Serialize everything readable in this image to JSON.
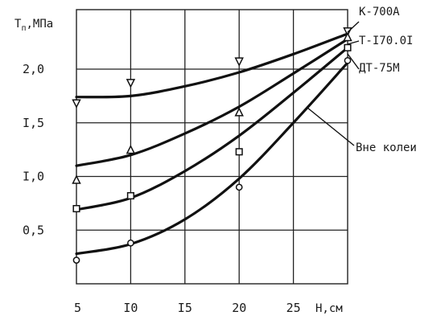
{
  "chart_data": {
    "type": "line",
    "xlabel": "H,см",
    "ylabel": "T_п,МПа",
    "ylabel_main": "T",
    "ylabel_sub": "п",
    "ylabel_unit": ",МПа",
    "xlim": [
      5,
      30
    ],
    "ylim": [
      0,
      2.5
    ],
    "x_ticks": [
      {
        "value": 5,
        "label": "5"
      },
      {
        "value": 10,
        "label": "I0"
      },
      {
        "value": 15,
        "label": "I5"
      },
      {
        "value": 20,
        "label": "20"
      },
      {
        "value": 25,
        "label": "25"
      }
    ],
    "y_ticks": [
      {
        "value": 0.5,
        "label": "0,5"
      },
      {
        "value": 1.0,
        "label": "I,0"
      },
      {
        "value": 1.5,
        "label": "I,5"
      },
      {
        "value": 2.0,
        "label": "2,0"
      }
    ],
    "grid": true,
    "series": [
      {
        "name": "К-700А",
        "marker": "triangle-down",
        "points": [
          [
            5,
            1.68
          ],
          [
            10,
            1.87
          ],
          [
            20,
            2.07
          ],
          [
            30,
            2.35
          ]
        ],
        "curve": [
          [
            5,
            1.74
          ],
          [
            10,
            1.75
          ],
          [
            15,
            1.84
          ],
          [
            20,
            1.97
          ],
          [
            25,
            2.14
          ],
          [
            30,
            2.33
          ]
        ]
      },
      {
        "name": "Т-I70.0I",
        "marker": "triangle-up",
        "points": [
          [
            5,
            0.97
          ],
          [
            10,
            1.25
          ],
          [
            20,
            1.6
          ],
          [
            30,
            2.3
          ]
        ],
        "curve": [
          [
            5,
            1.1
          ],
          [
            10,
            1.2
          ],
          [
            15,
            1.4
          ],
          [
            20,
            1.65
          ],
          [
            25,
            1.96
          ],
          [
            30,
            2.28
          ]
        ]
      },
      {
        "name": "ДТ-75М",
        "marker": "square",
        "points": [
          [
            5,
            0.7
          ],
          [
            10,
            0.82
          ],
          [
            20,
            1.23
          ],
          [
            30,
            2.2
          ]
        ],
        "curve": [
          [
            5,
            0.69
          ],
          [
            10,
            0.8
          ],
          [
            15,
            1.05
          ],
          [
            20,
            1.38
          ],
          [
            25,
            1.78
          ],
          [
            30,
            2.2
          ]
        ]
      },
      {
        "name": "Вне колеи",
        "marker": "circle",
        "points": [
          [
            5,
            0.22
          ],
          [
            10,
            0.38
          ],
          [
            20,
            0.9
          ],
          [
            30,
            2.08
          ]
        ],
        "curve": [
          [
            5,
            0.28
          ],
          [
            10,
            0.37
          ],
          [
            15,
            0.6
          ],
          [
            20,
            0.98
          ],
          [
            25,
            1.5
          ],
          [
            30,
            2.06
          ]
        ]
      }
    ]
  }
}
